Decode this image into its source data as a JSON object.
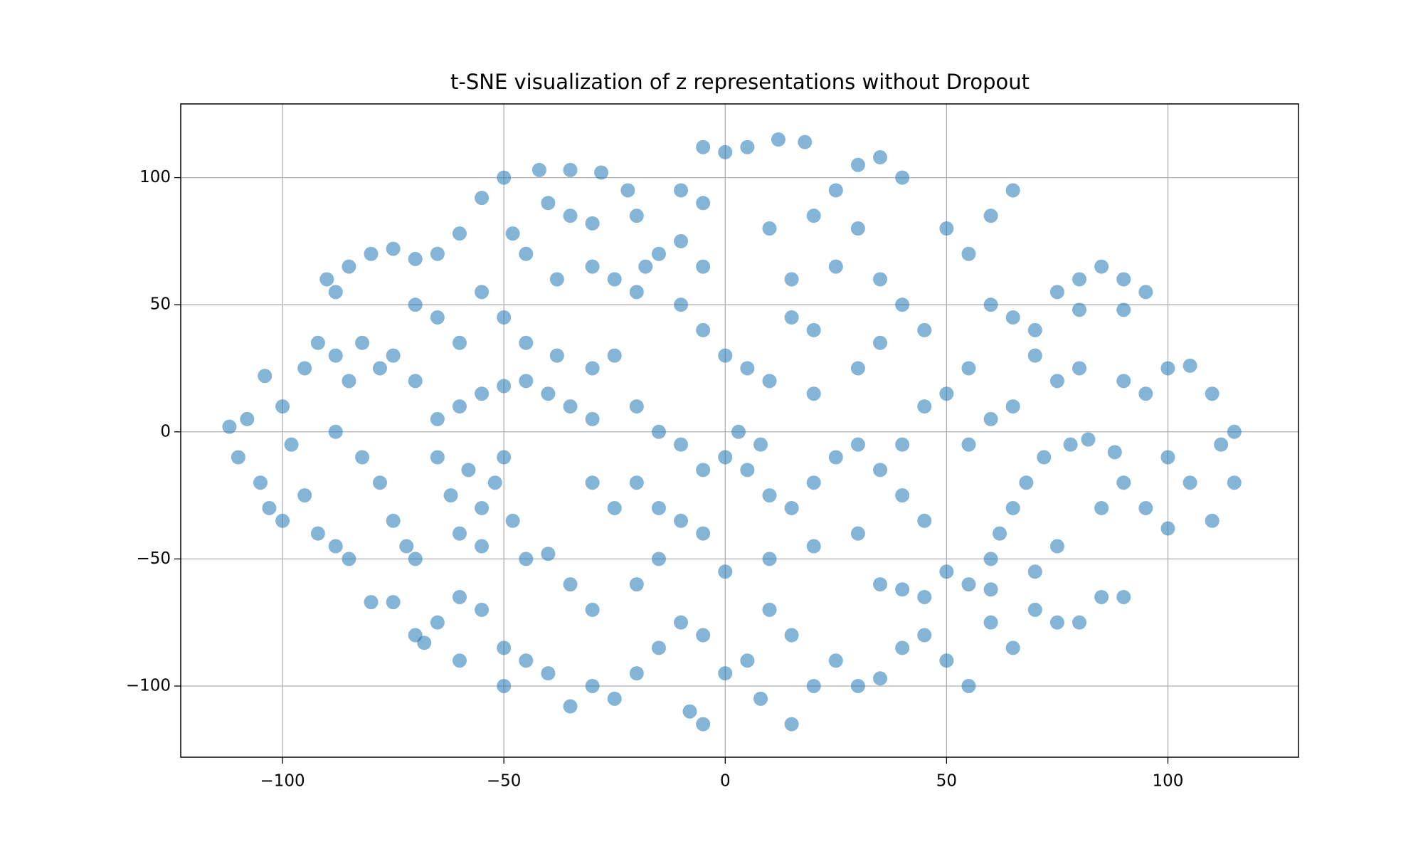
{
  "chart_data": {
    "type": "scatter",
    "title": "t-SNE visualization of z representations without Dropout",
    "color": "#1f77b4",
    "grid": true,
    "xlim": [
      -123,
      129.5
    ],
    "ylim": [
      -128,
      129
    ],
    "xticks": [
      {
        "value": -100,
        "label": "−100"
      },
      {
        "value": -50,
        "label": "−50"
      },
      0,
      50,
      100
    ],
    "yticks": [
      {
        "value": -100,
        "label": "−100"
      },
      {
        "value": -50,
        "label": "−50"
      },
      0,
      50,
      100
    ],
    "x": [
      -112,
      -110,
      -108,
      -105,
      -103,
      -100,
      -104,
      -100,
      -98,
      -95,
      -92,
      -88,
      -85,
      -90,
      -85,
      -80,
      -75,
      -70,
      -65,
      -88,
      -60,
      -92,
      -88,
      -82,
      -78,
      -95,
      -85,
      -75,
      -70,
      -88,
      -82,
      -78,
      -75,
      -72,
      -70,
      -65,
      -62,
      -58,
      -55,
      -52,
      -50,
      -60,
      -55,
      -48,
      -45,
      -40,
      -65,
      -60,
      -55,
      -50,
      -45,
      -40,
      -35,
      -30,
      -55,
      -50,
      -42,
      -35,
      -28,
      -22,
      -20,
      -40,
      -35,
      -30,
      -48,
      -45,
      -38,
      -30,
      -25,
      -55,
      -50,
      -45,
      -38,
      -30,
      -25,
      -60,
      -65,
      -70,
      -10,
      -5,
      0,
      -5,
      5,
      12,
      18,
      -15,
      -10,
      -5,
      -18,
      -20,
      -10,
      -5,
      0,
      5,
      10,
      15,
      20,
      15,
      10,
      20,
      25,
      30,
      35,
      40,
      30,
      25,
      35,
      40,
      45,
      35,
      30,
      20,
      -20,
      -15,
      -10,
      -5,
      0,
      5,
      8,
      3,
      -20,
      -15,
      -10,
      -25,
      -30,
      10,
      15,
      20,
      25,
      30,
      35,
      40,
      45,
      30,
      20,
      10,
      0,
      -5,
      50,
      55,
      60,
      65,
      60,
      65,
      70,
      75,
      80,
      85,
      90,
      95,
      90,
      80,
      70,
      75,
      80,
      90,
      95,
      100,
      105,
      110,
      115,
      112,
      100,
      105,
      115,
      95,
      100,
      110,
      50,
      55,
      60,
      62,
      65,
      68,
      72,
      78,
      82,
      88,
      90,
      85,
      75,
      70,
      60,
      45,
      40,
      35,
      55,
      60,
      65,
      50,
      55,
      45,
      40,
      -75,
      -70,
      -65,
      -60,
      -55,
      -50,
      -45,
      -40,
      -35,
      -30,
      -25,
      -20,
      -15,
      -10,
      -5,
      -8,
      -5,
      0,
      5,
      8,
      10,
      15,
      15,
      20,
      25,
      30,
      35,
      40,
      45,
      50,
      55,
      60,
      65,
      70,
      75,
      80,
      85,
      90,
      -30,
      -35,
      -20,
      -15,
      -80,
      -68,
      -60,
      -50
    ],
    "values": [
      2,
      -10,
      5,
      -20,
      -30,
      -35,
      22,
      10,
      -5,
      -25,
      -40,
      -45,
      -50,
      60,
      65,
      70,
      72,
      68,
      70,
      55,
      78,
      35,
      30,
      35,
      25,
      25,
      20,
      30,
      20,
      0,
      -10,
      -20,
      -35,
      -45,
      -50,
      -10,
      -25,
      -15,
      -30,
      -20,
      -10,
      -40,
      -45,
      -35,
      -50,
      -48,
      5,
      10,
      15,
      18,
      20,
      15,
      10,
      5,
      92,
      100,
      103,
      103,
      102,
      95,
      85,
      90,
      85,
      82,
      78,
      70,
      60,
      65,
      60,
      55,
      45,
      35,
      30,
      25,
      30,
      35,
      45,
      50,
      95,
      90,
      110,
      112,
      112,
      115,
      114,
      70,
      75,
      65,
      65,
      55,
      50,
      40,
      30,
      25,
      20,
      45,
      40,
      60,
      80,
      85,
      95,
      105,
      108,
      100,
      80,
      65,
      60,
      50,
      40,
      35,
      25,
      15,
      10,
      0,
      -5,
      -15,
      -10,
      -15,
      -5,
      0,
      -20,
      -30,
      -35,
      -30,
      -20,
      -25,
      -30,
      -20,
      -10,
      -5,
      -15,
      -25,
      -35,
      -40,
      -45,
      -50,
      -55,
      -40,
      80,
      70,
      85,
      95,
      50,
      45,
      40,
      55,
      60,
      65,
      60,
      55,
      48,
      48,
      30,
      20,
      25,
      20,
      15,
      25,
      26,
      15,
      0,
      -5,
      -10,
      -20,
      -20,
      -30,
      -38,
      -35,
      -55,
      -60,
      -50,
      -40,
      -30,
      -20,
      -10,
      -5,
      -3,
      -8,
      -20,
      -30,
      -45,
      -55,
      -62,
      -65,
      -62,
      -60,
      -5,
      5,
      10,
      15,
      25,
      10,
      -5,
      -67,
      -80,
      -75,
      -65,
      -70,
      -85,
      -90,
      -95,
      -108,
      -100,
      -105,
      -95,
      -85,
      -75,
      -80,
      -110,
      -115,
      -95,
      -90,
      -105,
      -70,
      -80,
      -115,
      -100,
      -90,
      -100,
      -97,
      -85,
      -80,
      -90,
      -100,
      -75,
      -85,
      -70,
      -75,
      -75,
      -65,
      -65,
      -70,
      -60,
      -60,
      -50,
      -67,
      -83,
      -90,
      -100
    ]
  }
}
